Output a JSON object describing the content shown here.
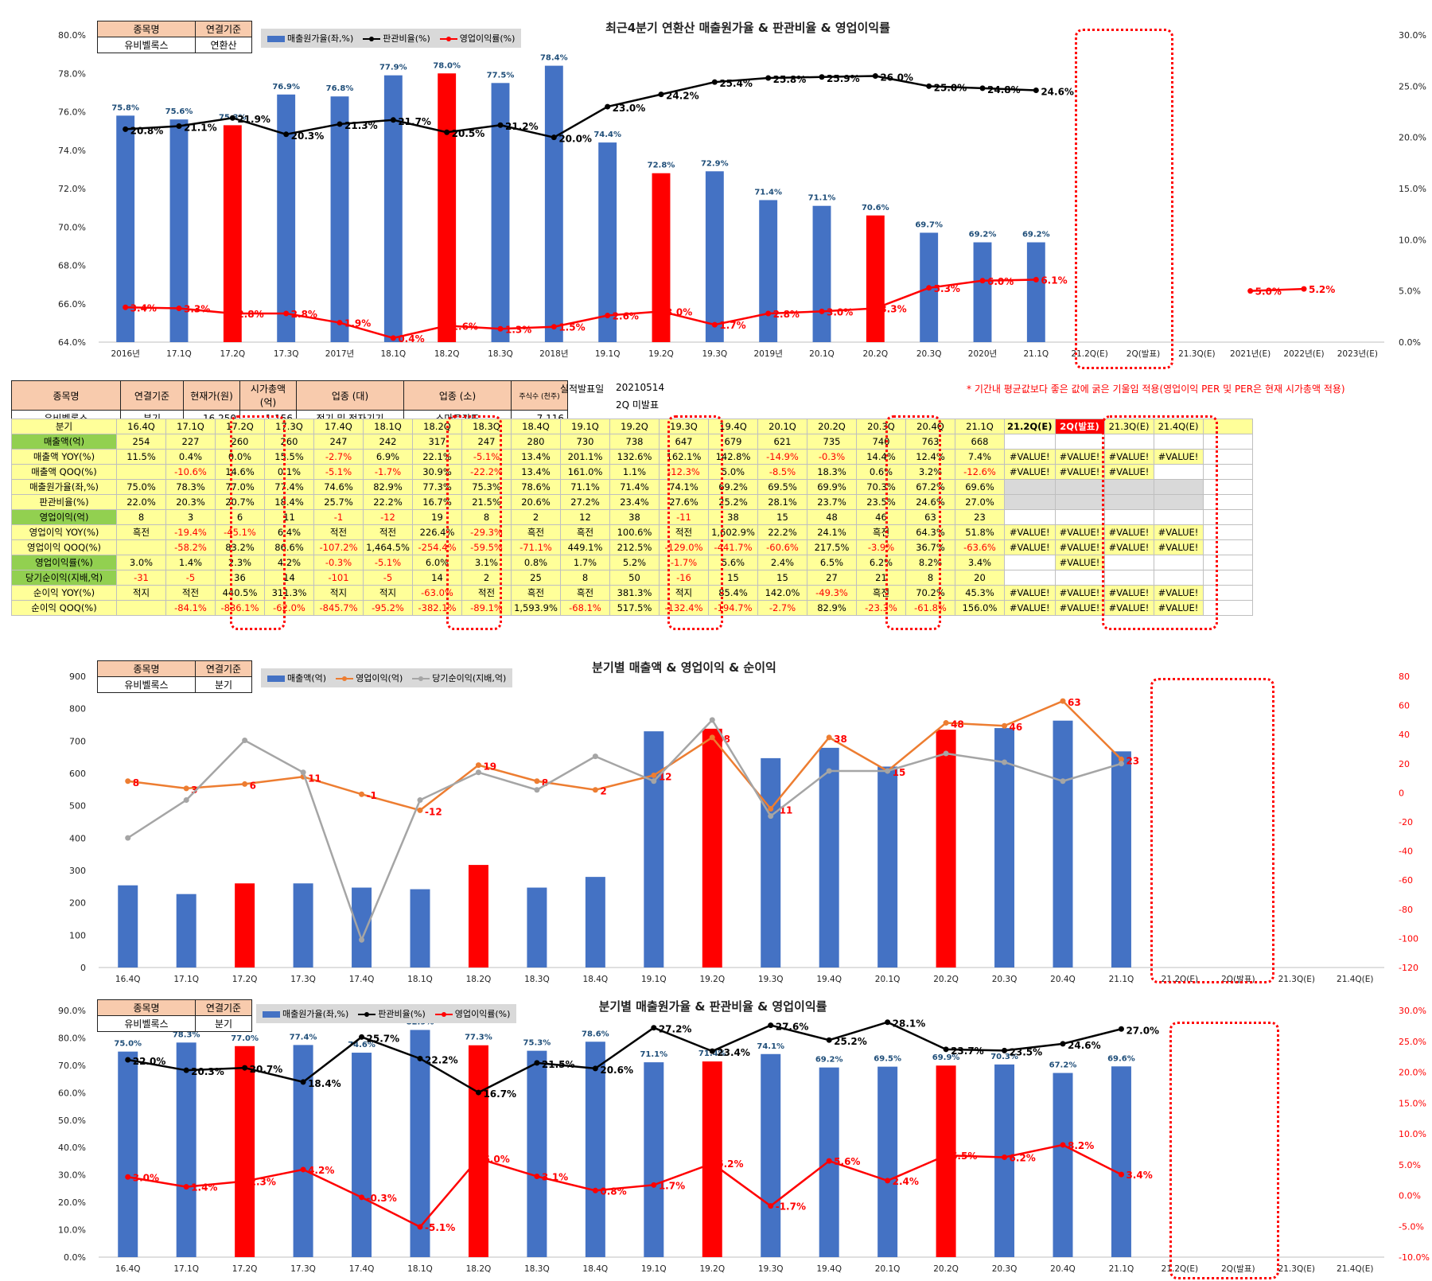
{
  "info": {
    "h_name": "종목명",
    "h_basis": "연결기준",
    "name": "유비벨록스",
    "basis_annual": "연환산",
    "basis_quarter": "분기"
  },
  "stock": {
    "headers": [
      "종목명",
      "연결기준",
      "현재가(원)",
      "시가총액(억)",
      "업종 (대)",
      "업종 (소)",
      "주식수 (천주)"
    ],
    "values": [
      "유비벨록스",
      "분기",
      "16,250",
      "1,156",
      "전기 및 전자기기",
      "스마트카드",
      "7,116"
    ],
    "report_label": "실적발표일",
    "report_date": "20210514",
    "report_status": "2Q 미발표",
    "note": "* 기간내 평균값보다 좋은 값에 굵은 기울임 적용(영업이익 PER 및 PER은 현재 시가총액 적용)"
  },
  "table": {
    "header_label": "분기",
    "columns": [
      "16.4Q",
      "17.1Q",
      "17.2Q",
      "17.3Q",
      "17.4Q",
      "18.1Q",
      "18.2Q",
      "18.3Q",
      "18.4Q",
      "19.1Q",
      "19.2Q",
      "19.3Q",
      "19.4Q",
      "20.1Q",
      "20.2Q",
      "20.3Q",
      "20.4Q",
      "21.1Q",
      "21.2Q(E)",
      "2Q(발표)",
      "21.3Q(E)",
      "21.4Q(E)",
      ""
    ],
    "rows": [
      {
        "label": "매출액(억)",
        "lclass": "g",
        "cells": [
          "254",
          "227",
          "260",
          "260",
          "247",
          "242",
          "317",
          "247",
          "280",
          "730",
          "738",
          "647",
          "679",
          "621",
          "735",
          "740",
          "763",
          "668",
          "",
          "",
          "",
          "",
          ""
        ]
      },
      {
        "label": "매출액 YOY(%)",
        "lclass": "y",
        "cells": [
          "11.5%",
          "0.4%",
          "0.0%",
          "15.5%",
          "-2.7%",
          "6.9%",
          "22.1%",
          "-5.1%",
          "13.4%",
          "201.1%",
          "132.6%",
          "162.1%",
          "142.8%",
          "-14.9%",
          "-0.3%",
          "14.4%",
          "12.4%",
          "7.4%",
          "#VALUE!",
          "#VALUE!",
          "#VALUE!",
          "#VALUE!",
          ""
        ]
      },
      {
        "label": "매출액 QOQ(%)",
        "lclass": "y",
        "cells": [
          "",
          "-10.6%",
          "14.6%",
          "0.1%",
          "-5.1%",
          "-1.7%",
          "30.9%",
          "-22.2%",
          "13.4%",
          "161.0%",
          "1.1%",
          "-12.3%",
          "5.0%",
          "-8.5%",
          "18.3%",
          "0.6%",
          "3.2%",
          "-12.6%",
          "#VALUE!",
          "#VALUE!",
          "#VALUE!",
          "",
          ""
        ]
      },
      {
        "label": "매출원가율(좌,%)",
        "lclass": "y",
        "cells": [
          "75.0%",
          "78.3%",
          "77.0%",
          "77.4%",
          "74.6%",
          "82.9%",
          "77.3%",
          "75.3%",
          "78.6%",
          "71.1%",
          "71.4%",
          "74.1%",
          "69.2%",
          "69.5%",
          "69.9%",
          "70.3%",
          "67.2%",
          "69.6%",
          "",
          "",
          "",
          "",
          ""
        ]
      },
      {
        "label": "판관비율(%)",
        "lclass": "y",
        "cells": [
          "22.0%",
          "20.3%",
          "20.7%",
          "18.4%",
          "25.7%",
          "22.2%",
          "16.7%",
          "21.5%",
          "20.6%",
          "27.2%",
          "23.4%",
          "27.6%",
          "25.2%",
          "28.1%",
          "23.7%",
          "23.5%",
          "24.6%",
          "27.0%",
          "",
          "",
          "",
          "",
          ""
        ]
      },
      {
        "label": "영업이익(억)",
        "lclass": "g",
        "cells": [
          "8",
          "3",
          "6",
          "11",
          "-1",
          "-12",
          "19",
          "8",
          "2",
          "12",
          "38",
          "-11",
          "38",
          "15",
          "48",
          "46",
          "63",
          "23",
          "",
          "",
          "",
          "",
          ""
        ]
      },
      {
        "label": "영업이익 YOY(%)",
        "lclass": "y",
        "cells": [
          "흑전",
          "-19.4%",
          "-45.1%",
          "6.4%",
          "적전",
          "적전",
          "226.4%",
          "-29.3%",
          "흑전",
          "흑전",
          "100.6%",
          "적전",
          "1,602.9%",
          "22.2%",
          "24.1%",
          "흑전",
          "64.3%",
          "51.8%",
          "#VALUE!",
          "#VALUE!",
          "#VALUE!",
          "#VALUE!",
          ""
        ]
      },
      {
        "label": "영업이익 QOQ(%)",
        "lclass": "y",
        "cells": [
          "",
          "-58.2%",
          "83.2%",
          "86.6%",
          "-107.2%",
          "1,464.5%",
          "-254.4%",
          "-59.5%",
          "-71.1%",
          "449.1%",
          "212.5%",
          "-129.0%",
          "-441.7%",
          "-60.6%",
          "217.5%",
          "-3.9%",
          "36.7%",
          "-63.6%",
          "#VALUE!",
          "#VALUE!",
          "#VALUE!",
          "#VALUE!",
          ""
        ]
      },
      {
        "label": "영업이익률(%)",
        "lclass": "g",
        "cells": [
          "3.0%",
          "1.4%",
          "2.3%",
          "4.2%",
          "-0.3%",
          "-5.1%",
          "6.0%",
          "3.1%",
          "0.8%",
          "1.7%",
          "5.2%",
          "-1.7%",
          "5.6%",
          "2.4%",
          "6.5%",
          "6.2%",
          "8.2%",
          "3.4%",
          "",
          "#VALUE!",
          "",
          "",
          ""
        ]
      },
      {
        "label": "당기순이익(지배,억)",
        "lclass": "g",
        "cells": [
          "-31",
          "-5",
          "36",
          "14",
          "-101",
          "-5",
          "14",
          "2",
          "25",
          "8",
          "50",
          "-16",
          "15",
          "15",
          "27",
          "21",
          "8",
          "20",
          "",
          "",
          "",
          "",
          ""
        ]
      },
      {
        "label": "순이익 YOY(%)",
        "lclass": "y",
        "cells": [
          "적지",
          "적전",
          "440.5%",
          "311.3%",
          "적지",
          "적지",
          "-63.0%",
          "적전",
          "흑전",
          "흑전",
          "381.3%",
          "적지",
          "85.4%",
          "142.0%",
          "-49.3%",
          "흑전",
          "70.2%",
          "45.3%",
          "#VALUE!",
          "#VALUE!",
          "#VALUE!",
          "#VALUE!",
          ""
        ]
      },
      {
        "label": "순이익 QOQ(%)",
        "lclass": "y",
        "cells": [
          "",
          "-84.1%",
          "-836.1%",
          "-62.0%",
          "-845.7%",
          "-95.2%",
          "-382.1%",
          "-89.1%",
          "1,593.9%",
          "-68.1%",
          "517.5%",
          "-132.4%",
          "-194.7%",
          "-2.7%",
          "82.9%",
          "-23.3%",
          "-61.8%",
          "156.0%",
          "#VALUE!",
          "#VALUE!",
          "#VALUE!",
          "#VALUE!",
          ""
        ]
      }
    ]
  },
  "chart_data": [
    {
      "type": "bar",
      "title": "최근4분기 연환산 매출원가율 & 판관비율 & 영업이익률",
      "legend": [
        "매출원가율(좌,%)",
        "판관비율(%)",
        "영업이익률(%)"
      ],
      "categories": [
        "2016년",
        "17.1Q",
        "17.2Q",
        "17.3Q",
        "2017년",
        "18.1Q",
        "18.2Q",
        "18.3Q",
        "2018년",
        "19.1Q",
        "19.2Q",
        "19.3Q",
        "2019년",
        "20.1Q",
        "20.2Q",
        "20.3Q",
        "2020년",
        "21.1Q",
        "21.2Q(E)",
        "2Q(발표)",
        "21.3Q(E)",
        "2021년(E)",
        "2022년(E)",
        "2023년(E)"
      ],
      "left_axis": {
        "min": 64,
        "max": 80,
        "ticks": [
          "64.0%",
          "66.0%",
          "68.0%",
          "70.0%",
          "72.0%",
          "74.0%",
          "76.0%",
          "78.0%",
          "80.0%"
        ]
      },
      "right_axis": {
        "min": 0,
        "max": 30,
        "ticks": [
          "0.0%",
          "5.0%",
          "10.0%",
          "15.0%",
          "20.0%",
          "25.0%",
          "30.0%"
        ]
      },
      "series": [
        {
          "name": "매출원가율(좌,%)",
          "axis": "left",
          "kind": "bar",
          "values": [
            75.8,
            75.6,
            75.3,
            76.9,
            76.8,
            77.9,
            78.0,
            77.5,
            78.4,
            74.4,
            72.8,
            72.9,
            71.4,
            71.1,
            70.6,
            69.7,
            69.2,
            69.2,
            null,
            null,
            null,
            null,
            null,
            null
          ]
        },
        {
          "name": "판관비율(%)",
          "axis": "right",
          "kind": "line",
          "values": [
            20.8,
            21.1,
            21.9,
            20.3,
            21.3,
            21.7,
            20.5,
            21.2,
            20.0,
            23.0,
            24.2,
            25.4,
            25.8,
            25.9,
            26.0,
            25.0,
            24.8,
            24.6,
            null,
            null,
            null,
            null,
            null,
            null
          ]
        },
        {
          "name": "영업이익률(%)",
          "axis": "right",
          "kind": "line",
          "values": [
            3.4,
            3.3,
            2.8,
            2.8,
            1.9,
            0.4,
            1.6,
            1.3,
            1.5,
            2.6,
            3.0,
            1.7,
            2.8,
            3.0,
            3.3,
            5.3,
            6.0,
            6.1,
            null,
            null,
            null,
            5.0,
            5.2,
            null
          ]
        }
      ],
      "highlight": [
        2,
        6,
        10,
        14
      ],
      "colors": {
        "bar": "#4472c4",
        "highlight": "#ff0000",
        "line1": "#000000",
        "line2": "#ff0000"
      }
    },
    {
      "type": "bar",
      "title": "분기별 매출액 & 영업이익 & 순이익",
      "legend": [
        "매출액(억)",
        "영업이익(억)",
        "당기순이익(지배,억)"
      ],
      "categories": [
        "16.4Q",
        "17.1Q",
        "17.2Q",
        "17.3Q",
        "17.4Q",
        "18.1Q",
        "18.2Q",
        "18.3Q",
        "18.4Q",
        "19.1Q",
        "19.2Q",
        "19.3Q",
        "19.4Q",
        "20.1Q",
        "20.2Q",
        "20.3Q",
        "20.4Q",
        "21.1Q",
        "21.2Q(E)",
        "2Q(발표)",
        "21.3Q(E)",
        "21.4Q(E)"
      ],
      "left_axis": {
        "min": 0,
        "max": 900,
        "ticks": [
          "0",
          "100",
          "200",
          "300",
          "400",
          "500",
          "600",
          "700",
          "800",
          "900"
        ]
      },
      "right_axis": {
        "min": -120,
        "max": 80,
        "ticks": [
          "-120",
          "-100",
          "-80",
          "-60",
          "-40",
          "-20",
          "0",
          "20",
          "40",
          "60",
          "80"
        ]
      },
      "series": [
        {
          "name": "매출액(억)",
          "axis": "left",
          "kind": "bar",
          "values": [
            254,
            227,
            260,
            260,
            247,
            242,
            317,
            247,
            280,
            730,
            738,
            647,
            679,
            621,
            735,
            740,
            763,
            668,
            null,
            null,
            null,
            null
          ]
        },
        {
          "name": "영업이익(억)",
          "axis": "right",
          "kind": "line",
          "values": [
            8,
            3,
            6,
            11,
            -1,
            -12,
            19,
            8,
            2,
            12,
            38,
            -11,
            38,
            15,
            48,
            46,
            63,
            23,
            null,
            null,
            null,
            null
          ]
        },
        {
          "name": "당기순이익(지배,억)",
          "axis": "right",
          "kind": "line",
          "values": [
            -31,
            -5,
            36,
            14,
            -101,
            -5,
            14,
            2,
            25,
            8,
            50,
            -16,
            15,
            15,
            27,
            21,
            8,
            20,
            null,
            null,
            null,
            null
          ]
        }
      ],
      "highlight": [
        2,
        6,
        10,
        14
      ],
      "colors": {
        "bar": "#4472c4",
        "highlight": "#ff0000",
        "line1": "#ed7d31",
        "line2": "#a5a5a5"
      }
    },
    {
      "type": "bar",
      "title": "분기별 매출원가율 & 판관비율 & 영업이익률",
      "legend": [
        "매출원가율(좌,%)",
        "판관비율(%)",
        "영업이익률(%)"
      ],
      "categories": [
        "16.4Q",
        "17.1Q",
        "17.2Q",
        "17.3Q",
        "17.4Q",
        "18.1Q",
        "18.2Q",
        "18.3Q",
        "18.4Q",
        "19.1Q",
        "19.2Q",
        "19.3Q",
        "19.4Q",
        "20.1Q",
        "20.2Q",
        "20.3Q",
        "20.4Q",
        "21.1Q",
        "21.2Q(E)",
        "2Q(발표)",
        "21.3Q(E)",
        "21.4Q(E)"
      ],
      "left_axis": {
        "min": 0,
        "max": 90,
        "ticks": [
          "0.0%",
          "10.0%",
          "20.0%",
          "30.0%",
          "40.0%",
          "50.0%",
          "60.0%",
          "70.0%",
          "80.0%",
          "90.0%"
        ]
      },
      "right_axis": {
        "min": -10,
        "max": 30,
        "ticks": [
          "-10.0%",
          "-5.0%",
          "0.0%",
          "5.0%",
          "10.0%",
          "15.0%",
          "20.0%",
          "25.0%",
          "30.0%"
        ]
      },
      "series": [
        {
          "name": "매출원가율(좌,%)",
          "axis": "left",
          "kind": "bar",
          "values": [
            75.0,
            78.3,
            77.0,
            77.4,
            74.6,
            82.9,
            77.3,
            75.3,
            78.6,
            71.1,
            71.4,
            74.1,
            69.2,
            69.5,
            69.9,
            70.3,
            67.2,
            69.6,
            null,
            null,
            null,
            null
          ]
        },
        {
          "name": "판관비율(%)",
          "axis": "right",
          "kind": "line",
          "values": [
            22.0,
            20.3,
            20.7,
            18.4,
            25.7,
            22.2,
            16.7,
            21.5,
            20.6,
            27.2,
            23.4,
            27.6,
            25.2,
            28.1,
            23.7,
            23.5,
            24.6,
            27.0,
            null,
            null,
            null,
            null
          ]
        },
        {
          "name": "영업이익률(%)",
          "axis": "right",
          "kind": "line",
          "values": [
            3.0,
            1.4,
            2.3,
            4.2,
            -0.3,
            -5.1,
            6.0,
            3.1,
            0.8,
            1.7,
            5.2,
            -1.7,
            5.6,
            2.4,
            6.5,
            6.2,
            8.2,
            3.4,
            null,
            null,
            null,
            null
          ]
        }
      ],
      "highlight": [
        2,
        6,
        10,
        14
      ],
      "colors": {
        "bar": "#4472c4",
        "highlight": "#ff0000",
        "line1": "#000000",
        "line2": "#ff0000"
      }
    }
  ]
}
